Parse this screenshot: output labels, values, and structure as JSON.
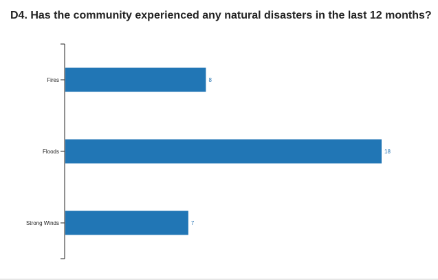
{
  "chart_data": {
    "type": "bar",
    "orientation": "horizontal",
    "title": "D4. Has the community experienced any natural disasters in the last 12 months?",
    "categories": [
      "Fires",
      "Floods",
      "Strong Winds"
    ],
    "values": [
      8,
      18,
      7
    ],
    "xlim": [
      0,
      18
    ],
    "xlabel": "",
    "ylabel": "",
    "grid": false,
    "legend": "none",
    "colors": {
      "bar": "#2176b5",
      "value_label": "#1f6fb0",
      "axis": "#222222",
      "title": "#222222"
    }
  }
}
